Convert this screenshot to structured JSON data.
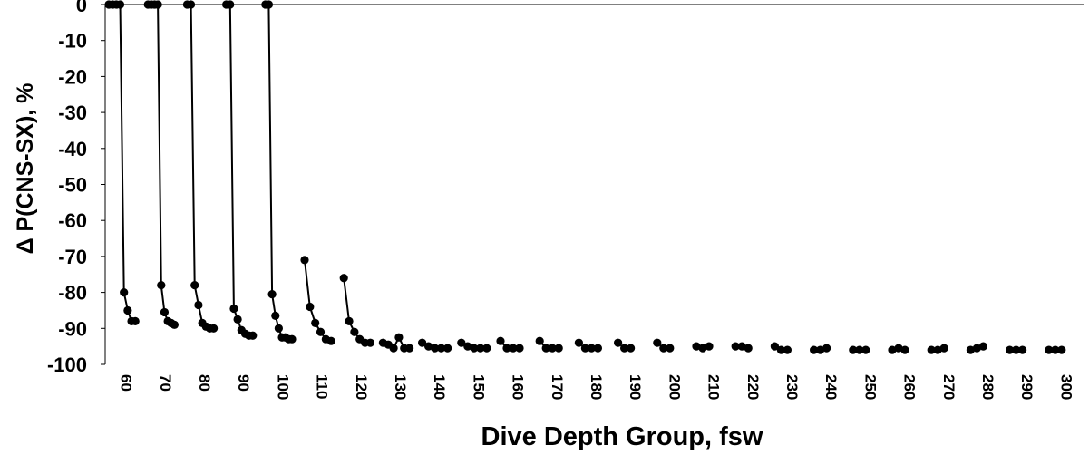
{
  "chart_data": {
    "type": "line",
    "xlabel": "Dive Depth Group, fsw",
    "ylabel": "Δ P(CNS-SX), %",
    "ylim": [
      -100,
      0
    ],
    "yticks": [
      0,
      -10,
      -20,
      -30,
      -40,
      -50,
      -60,
      -70,
      -80,
      -90,
      -100
    ],
    "xtick_labels": [
      "60",
      "70",
      "80",
      "90",
      "100",
      "110",
      "120",
      "130",
      "140",
      "150",
      "160",
      "170",
      "180",
      "190",
      "200",
      "210",
      "220",
      "230",
      "240",
      "250",
      "260",
      "270",
      "280",
      "290",
      "300"
    ],
    "grid": false,
    "line_color": "#000000",
    "marker_color": "#000000",
    "series": [
      {
        "values": [
          0,
          0,
          0,
          0,
          -80,
          -85,
          -88,
          -88
        ]
      },
      {
        "values": [
          0,
          0,
          0,
          0,
          -78,
          -85.5,
          -88,
          -88.5,
          -89
        ]
      },
      {
        "values": [
          0,
          0,
          -78,
          -83.5,
          -88.5,
          -89.5,
          -90,
          -90
        ]
      },
      {
        "values": [
          0,
          0,
          -84.5,
          -87.5,
          -90.5,
          -91.5,
          -92,
          -92
        ]
      },
      {
        "values": [
          0,
          0,
          -80.5,
          -86.5,
          -90,
          -92.5,
          -92.5,
          -93,
          -93
        ]
      },
      {
        "values": [
          -71,
          -84,
          -88.5,
          -91,
          -93,
          -93.5
        ]
      },
      {
        "values": [
          -76,
          -88,
          -91,
          -93,
          -94,
          -94
        ]
      },
      {
        "values": [
          -94,
          -94.5,
          -95.5,
          -92.5,
          -95.5,
          -95.5
        ]
      },
      {
        "values": [
          -94,
          -95,
          -95.5,
          -95.5,
          -95.5
        ]
      },
      {
        "values": [
          -94,
          -95,
          -95.5,
          -95.5,
          -95.5
        ]
      },
      {
        "values": [
          -93.5,
          -95.5,
          -95.5,
          -95.5
        ]
      },
      {
        "values": [
          -93.5,
          -95.5,
          -95.5,
          -95.5
        ]
      },
      {
        "values": [
          -94,
          -95.5,
          -95.5,
          -95.5
        ]
      },
      {
        "values": [
          -94,
          -95.5,
          -95.5
        ]
      },
      {
        "values": [
          -94,
          -95.5,
          -95.5
        ]
      },
      {
        "values": [
          -95,
          -95.5,
          -95
        ]
      },
      {
        "values": [
          -95,
          -95,
          -95.5
        ]
      },
      {
        "values": [
          -95,
          -96,
          -96
        ]
      },
      {
        "values": [
          -96,
          -96,
          -95.5
        ]
      },
      {
        "values": [
          -96,
          -96,
          -96
        ]
      },
      {
        "values": [
          -96,
          -95.5,
          -96
        ]
      },
      {
        "values": [
          -96,
          -96,
          -95.5
        ]
      },
      {
        "values": [
          -96,
          -95.5,
          -95
        ]
      },
      {
        "values": [
          -96,
          -96,
          -96
        ]
      },
      {
        "values": [
          -96,
          -96,
          -96
        ]
      }
    ]
  }
}
